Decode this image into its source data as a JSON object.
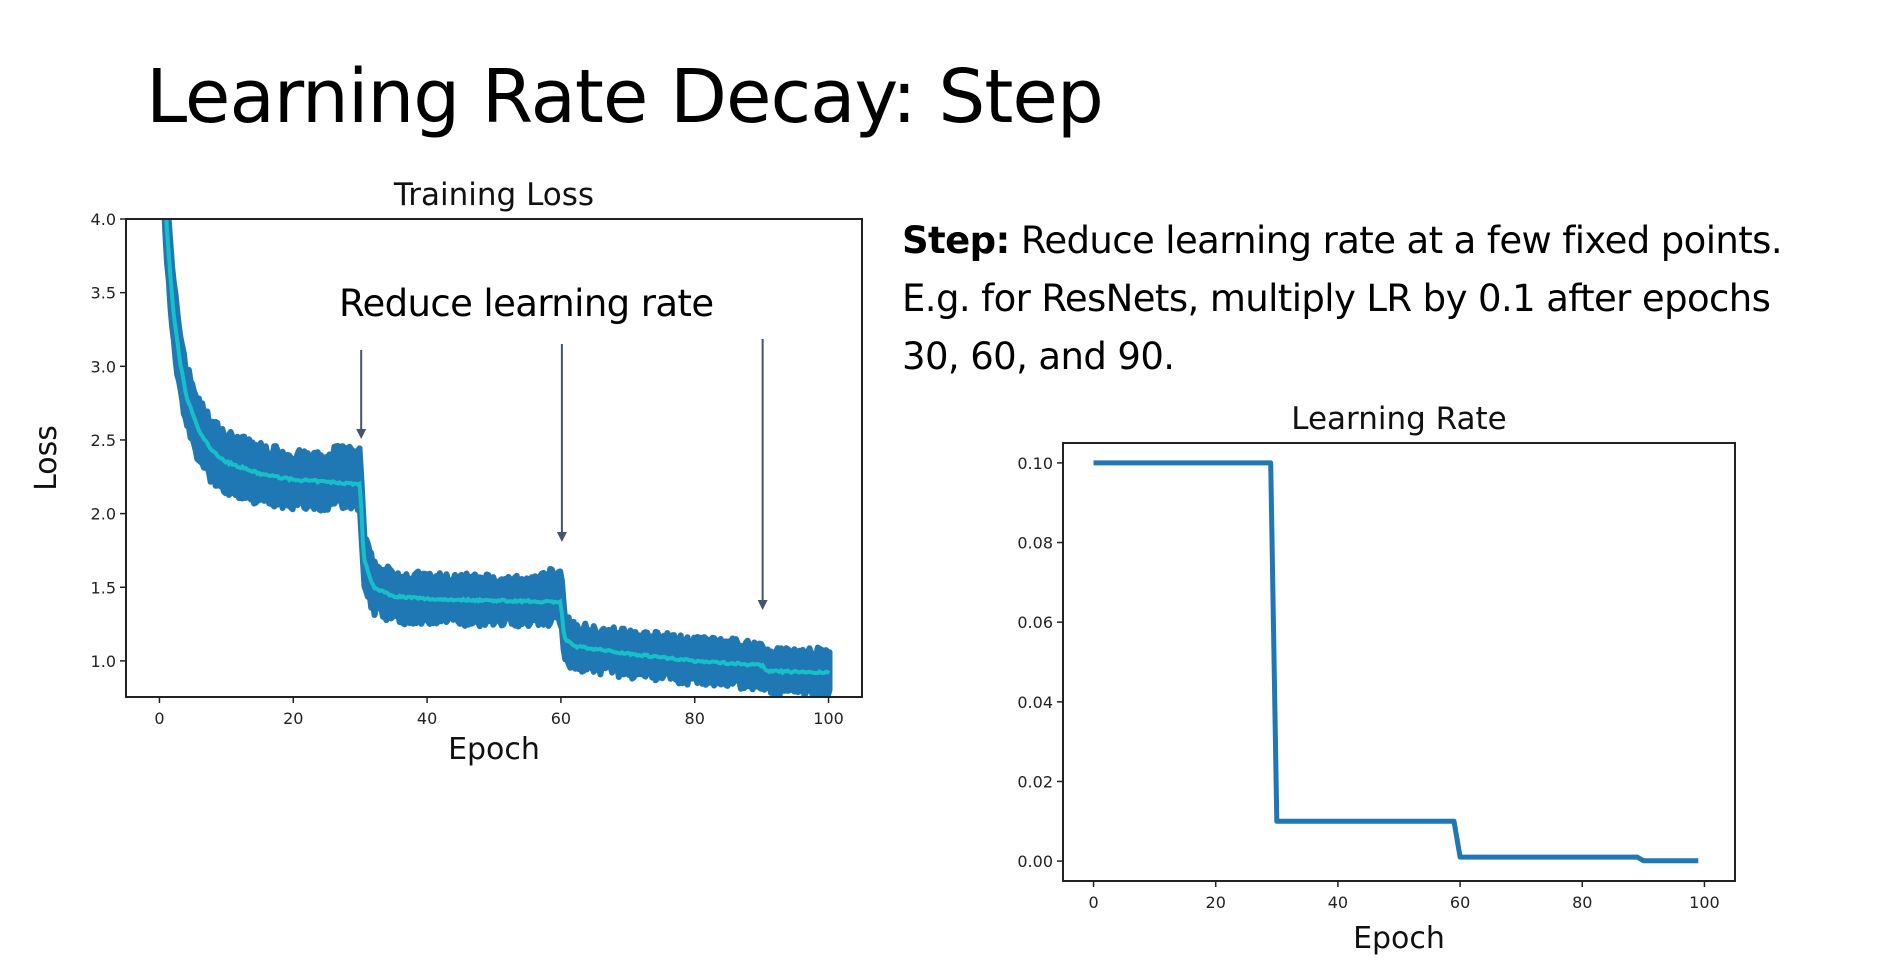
{
  "slide": {
    "title": "Learning Rate Decay: Step",
    "desc_bold": "Step:",
    "desc_line1": " Reduce learning rate at a few fixed points.",
    "desc_line2": "E.g. for ResNets, multiply LR by 0.1 after epochs",
    "desc_line3": "30, 60, and 90."
  },
  "colors": {
    "band": "#1f77b4",
    "mean": "#17c0c8",
    "lr": "#1f77b4",
    "arrow": "#44546a"
  },
  "chart_data": [
    {
      "type": "line",
      "title": "Training Loss",
      "xlabel": "Epoch",
      "ylabel": "Loss",
      "xlim": [
        -5,
        105
      ],
      "ylim": [
        0.755,
        4.0
      ],
      "xticks": [
        "0",
        "20",
        "40",
        "60",
        "80",
        "100"
      ],
      "yticks": [
        "1.0",
        "1.5",
        "2.0",
        "2.5",
        "3.0",
        "3.5",
        "4.0"
      ],
      "annotation": "Reduce learning rate",
      "arrow_epochs": [
        30,
        60,
        90
      ],
      "series": [
        {
          "name": "loss (smoothed mean)",
          "x": [
            0,
            1,
            2,
            3,
            4,
            6,
            8,
            10,
            15,
            20,
            30,
            30.5,
            32,
            35,
            40,
            60,
            60.5,
            62,
            70,
            80,
            90,
            91,
            100
          ],
          "y": [
            5.0,
            4.0,
            3.4,
            3.05,
            2.8,
            2.55,
            2.42,
            2.35,
            2.27,
            2.23,
            2.2,
            1.7,
            1.5,
            1.44,
            1.42,
            1.4,
            1.15,
            1.1,
            1.05,
            1.0,
            0.97,
            0.93,
            0.92
          ]
        },
        {
          "name": "loss (per-iteration band half-width)",
          "x": [
            0,
            30,
            60,
            100
          ],
          "y": [
            0.2,
            0.15,
            0.13,
            0.13
          ]
        }
      ]
    },
    {
      "type": "line",
      "title": "Learning Rate",
      "xlabel": "Epoch",
      "ylabel": "",
      "xlim": [
        -5,
        105
      ],
      "ylim": [
        -0.005,
        0.105
      ],
      "xticks": [
        "0",
        "20",
        "40",
        "60",
        "80",
        "100"
      ],
      "yticks": [
        "0.00",
        "0.02",
        "0.04",
        "0.06",
        "0.08",
        "0.10"
      ],
      "series": [
        {
          "name": "learning rate",
          "x": [
            0,
            29,
            30,
            59,
            60,
            89,
            90,
            99
          ],
          "y": [
            0.1,
            0.1,
            0.01,
            0.01,
            0.001,
            0.001,
            0.0001,
            0.0001
          ]
        }
      ]
    }
  ]
}
